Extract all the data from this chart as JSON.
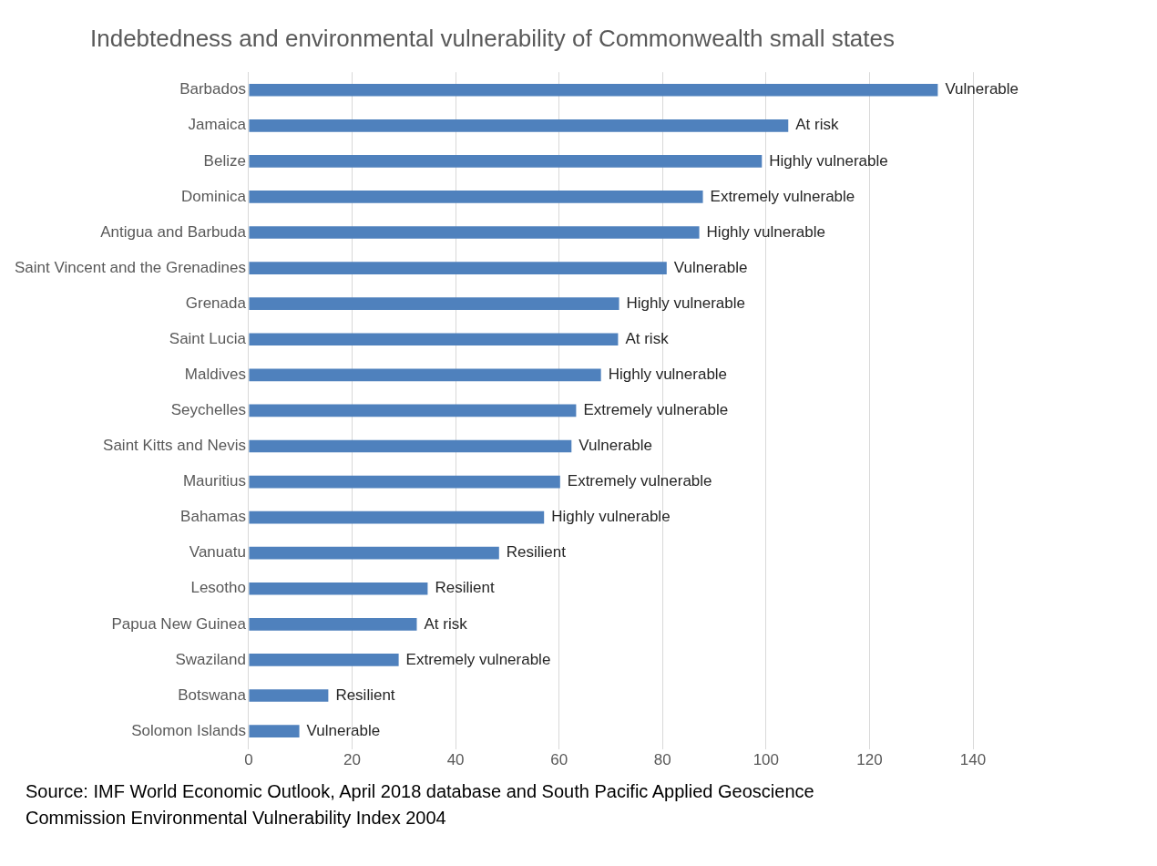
{
  "chart_data": {
    "type": "bar",
    "orientation": "horizontal",
    "title": "Indebtedness and environmental vulnerability of Commonwealth small states",
    "categories": [
      "Barbados",
      "Jamaica",
      "Belize",
      "Dominica",
      "Antigua and Barbuda",
      "Saint Vincent and the Grenadines",
      "Grenada",
      "Saint Lucia",
      "Maldives",
      "Seychelles",
      "Saint Kitts and Nevis",
      "Mauritius",
      "Bahamas",
      "Vanuatu",
      "Lesotho",
      "Papua New Guinea",
      "Swaziland",
      "Botswana",
      "Solomon Islands"
    ],
    "values": [
      133.2,
      104.3,
      99.2,
      87.8,
      87.1,
      80.8,
      71.6,
      71.4,
      68.1,
      63.3,
      62.4,
      60.2,
      57.1,
      48.4,
      34.6,
      32.5,
      29.0,
      15.4,
      9.8
    ],
    "value_labels": [
      "Vulnerable",
      "At risk",
      "Highly vulnerable",
      "Extremely vulnerable",
      "Highly vulnerable",
      "Vulnerable",
      "Highly vulnerable",
      "At risk",
      "Highly vulnerable",
      "Extremely vulnerable",
      "Vulnerable",
      "Extremely vulnerable",
      "Highly vulnerable",
      "Resilient",
      "Resilient",
      "At risk",
      "Extremely vulnerable",
      "Resilient",
      "Vulnerable"
    ],
    "color": "#4f81bd",
    "xlim": [
      0,
      140
    ],
    "xticks": [
      0,
      20,
      40,
      60,
      80,
      100,
      120,
      140
    ],
    "grid": "x",
    "legend": false,
    "annotations": [
      "Source: IMF World Economic Outlook, April 2018 database and South Pacific Applied Geoscience Commission Environmental Vulnerability Index 2004"
    ]
  }
}
